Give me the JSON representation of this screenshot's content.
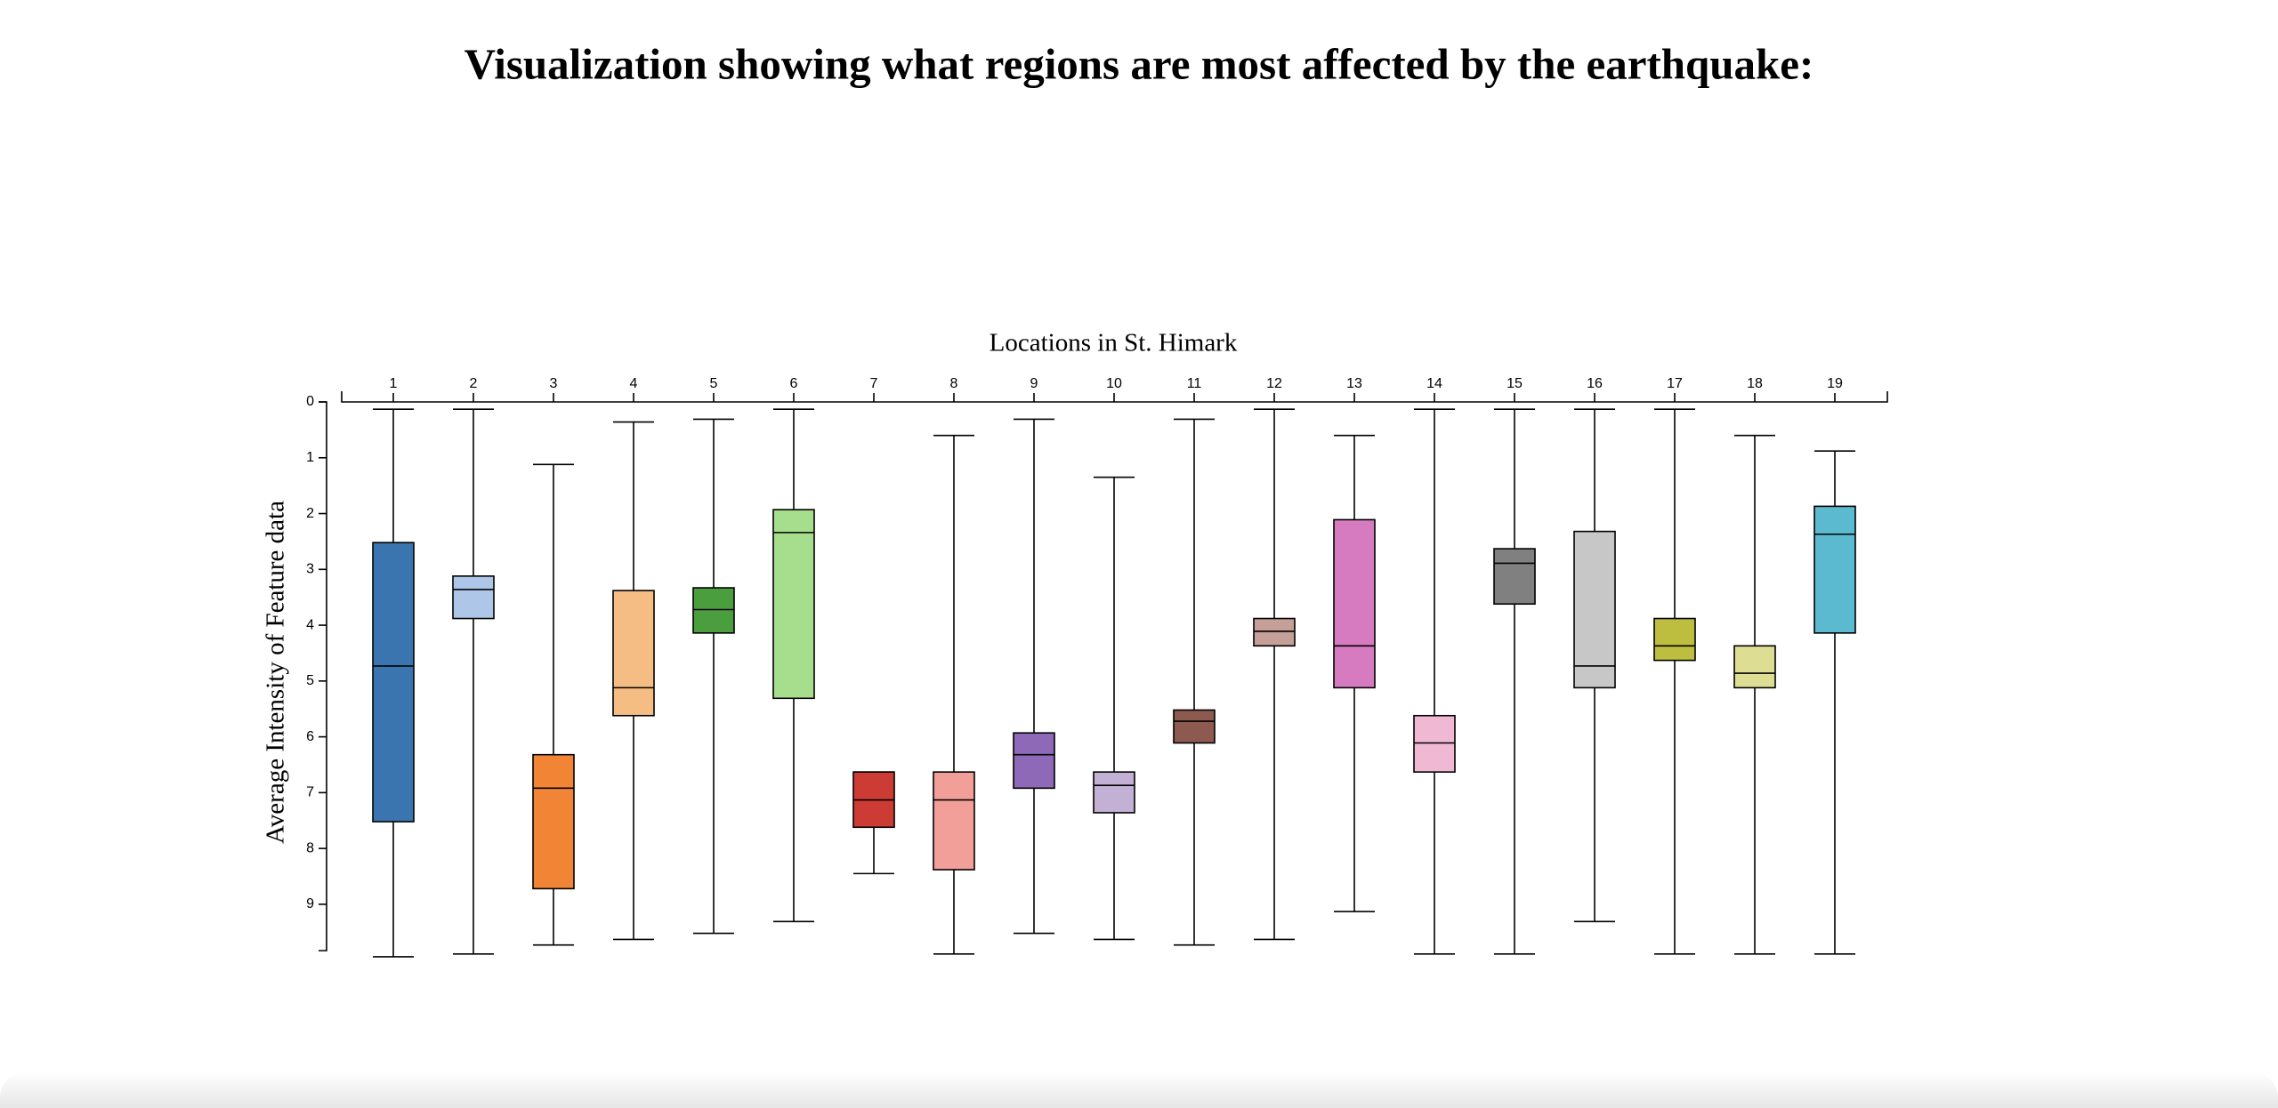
{
  "chart_data": {
    "type": "box",
    "title": "Visualization showing what regions are most affected by the earthquake:",
    "x_label": "Locations in St. Himark",
    "y_label": "Average Intensity of Feature data",
    "categories": [
      "1",
      "2",
      "3",
      "4",
      "5",
      "6",
      "7",
      "8",
      "9",
      "10",
      "11",
      "12",
      "13",
      "14",
      "15",
      "16",
      "17",
      "18",
      "19"
    ],
    "min": [
      0.13,
      0.13,
      1.12,
      0.36,
      0.31,
      0.13,
      6.63,
      0.6,
      0.31,
      1.35,
      0.31,
      0.13,
      0.6,
      0.13,
      0.13,
      0.13,
      0.13,
      0.6,
      0.88
    ],
    "q1": [
      2.52,
      3.12,
      6.32,
      3.38,
      3.33,
      1.93,
      6.63,
      6.63,
      5.93,
      6.63,
      5.52,
      3.88,
      2.11,
      5.62,
      2.63,
      2.32,
      3.88,
      4.37,
      1.87
    ],
    "median": [
      4.73,
      3.36,
      6.92,
      5.12,
      3.72,
      2.34,
      7.13,
      7.13,
      6.32,
      6.87,
      5.72,
      4.11,
      4.37,
      6.11,
      2.89,
      4.73,
      4.37,
      4.86,
      2.37
    ],
    "q3": [
      7.52,
      3.88,
      8.72,
      5.62,
      4.14,
      5.31,
      7.62,
      8.38,
      6.92,
      7.36,
      6.11,
      4.37,
      5.12,
      6.63,
      3.62,
      5.12,
      4.63,
      5.12,
      4.14
    ],
    "max": [
      9.94,
      9.89,
      9.73,
      9.63,
      9.52,
      9.31,
      8.45,
      9.89,
      9.52,
      9.63,
      9.73,
      9.63,
      9.13,
      9.89,
      9.89,
      9.31,
      9.89,
      9.89,
      9.89
    ],
    "colors": [
      "#3a75b0",
      "#aec7e8",
      "#f28535",
      "#f5bd83",
      "#4a9e3e",
      "#a7de8d",
      "#cc3b34",
      "#f29e99",
      "#8d69b8",
      "#c2b0d5",
      "#8c5a4f",
      "#c4a098",
      "#d67bc0",
      "#f0b8d2",
      "#808080",
      "#c7c7c7",
      "#bdbd40",
      "#dddd94",
      "#5bbacf"
    ],
    "ylim": [
      0,
      9.83
    ],
    "yticks": [
      0,
      1,
      2,
      3,
      4,
      5,
      6,
      7,
      8,
      9
    ],
    "y_inverted": true
  }
}
